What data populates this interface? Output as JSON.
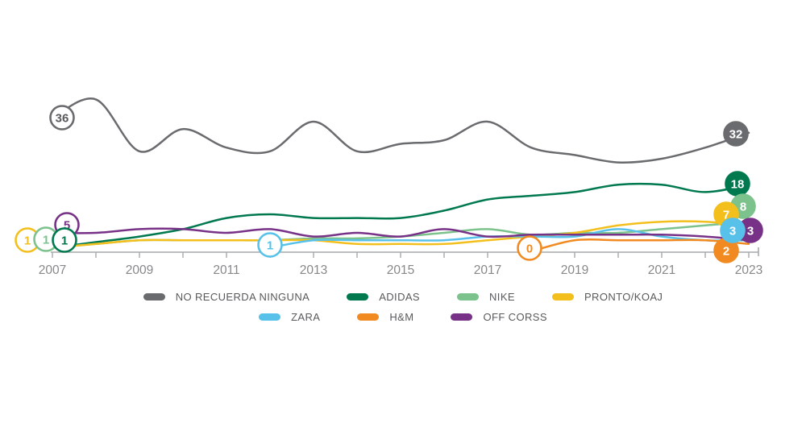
{
  "chart_data": {
    "type": "line",
    "title": "",
    "x": [
      2007,
      2008,
      2009,
      2010,
      2011,
      2012,
      2013,
      2014,
      2015,
      2016,
      2017,
      2018,
      2019,
      2020,
      2021,
      2022,
      2023
    ],
    "x_tick_labels": [
      "2007",
      "2009",
      "2011",
      "2013",
      "2015",
      "2017",
      "2019",
      "2021",
      "2023"
    ],
    "ylim": [
      0,
      45
    ],
    "grid": false,
    "legend_position": "bottom",
    "axis_color": "#A7A9AC",
    "tick_label_color": "#87888A",
    "legend_text_color": "#58595B",
    "series": [
      {
        "name": "NO RECUERDA NINGUNA",
        "color": "#6A6B6E",
        "values": [
          36,
          41,
          27,
          33,
          28,
          27,
          35,
          27,
          29,
          30,
          35,
          28,
          26,
          24,
          25,
          28,
          32
        ],
        "start_label": "36",
        "end_label": "32"
      },
      {
        "name": "ADIDAS",
        "color": "#00794F",
        "values": [
          1,
          2.5,
          4,
          6,
          9,
          10,
          9,
          9,
          9,
          11,
          14,
          15,
          16,
          18,
          18,
          16,
          18
        ],
        "start_label": "1",
        "end_label": "18"
      },
      {
        "name": "NIKE",
        "color": "#7CC28C",
        "values": [
          1,
          2,
          3,
          3,
          3,
          3,
          3.5,
          3.5,
          4,
          5,
          6,
          4.5,
          5,
          5,
          6,
          7,
          8
        ],
        "start_label": "1",
        "end_label": "8"
      },
      {
        "name": "PRONTO/KOAJ",
        "color": "#F3BF1D",
        "values": [
          1,
          2,
          3,
          3,
          3,
          3,
          3,
          2,
          2,
          2,
          3,
          4,
          5,
          7,
          8,
          8,
          7
        ],
        "start_label": "1",
        "end_label": "7"
      },
      {
        "name": "ZARA",
        "color": "#58C1E9",
        "values": [
          null,
          null,
          null,
          null,
          null,
          1,
          3,
          3,
          3,
          3,
          4,
          4,
          4,
          6,
          4,
          3,
          3
        ],
        "start_label": "1",
        "end_label": "3"
      },
      {
        "name": "H&M",
        "color": "#F18A21",
        "values": [
          null,
          null,
          null,
          null,
          null,
          null,
          null,
          null,
          null,
          null,
          null,
          0,
          3,
          3,
          3,
          3,
          2
        ],
        "start_label": "0",
        "end_label": "2"
      },
      {
        "name": "OFF CORSS",
        "color": "#773287",
        "values": [
          5,
          5,
          6,
          6,
          5,
          6,
          4,
          5,
          4,
          6,
          4,
          4.5,
          4.5,
          4.5,
          4.5,
          4,
          3
        ],
        "start_label": "5",
        "end_label": "3"
      }
    ],
    "legend_rows": [
      [
        0,
        1,
        2,
        3
      ],
      [
        4,
        5,
        6
      ]
    ]
  }
}
